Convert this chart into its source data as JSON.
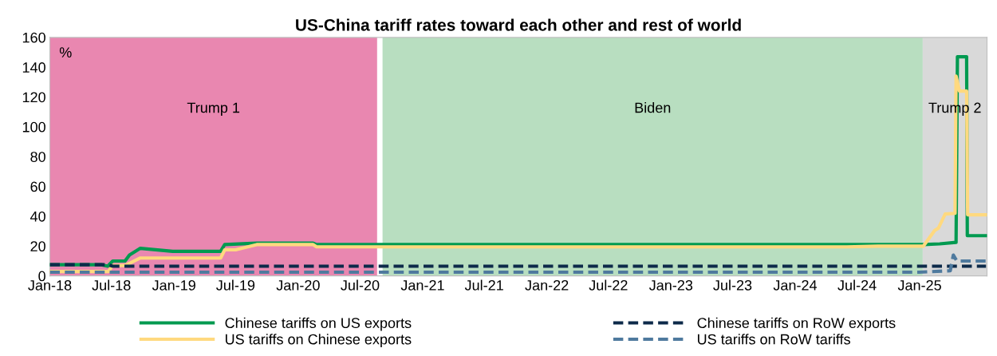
{
  "chart_data": {
    "type": "line",
    "title": "US-China tariff rates toward each other and rest of world",
    "annotations": [
      "%"
    ],
    "xlim": [
      "2018-01-01",
      "2025-07-18"
    ],
    "xticks": [
      {
        "value": "2018-01-01",
        "label": "Jan-18"
      },
      {
        "value": "2018-07-01",
        "label": "Jul-18"
      },
      {
        "value": "2019-01-01",
        "label": "Jan-19"
      },
      {
        "value": "2019-07-01",
        "label": "Jul-19"
      },
      {
        "value": "2020-01-01",
        "label": "Jan-20"
      },
      {
        "value": "2020-07-01",
        "label": "Jul-20"
      },
      {
        "value": "2021-01-01",
        "label": "Jan-21"
      },
      {
        "value": "2021-07-01",
        "label": "Jul-21"
      },
      {
        "value": "2022-01-01",
        "label": "Jan-22"
      },
      {
        "value": "2022-07-01",
        "label": "Jul-22"
      },
      {
        "value": "2023-01-01",
        "label": "Jan-23"
      },
      {
        "value": "2023-07-01",
        "label": "Jul-23"
      },
      {
        "value": "2024-01-01",
        "label": "Jan-24"
      },
      {
        "value": "2024-07-01",
        "label": "Jul-24"
      },
      {
        "value": "2025-01-01",
        "label": "Jan-25"
      }
    ],
    "ylim": [
      0,
      160
    ],
    "yticks": [
      0,
      20,
      40,
      60,
      80,
      100,
      120,
      140,
      160
    ],
    "grid": false,
    "legend": "bottom",
    "bands": [
      {
        "axis": "x",
        "from": "2018-01-01",
        "to": "2020-08-20",
        "label": "Trump 1",
        "color": "#e987b0"
      },
      {
        "axis": "x",
        "from": "2020-09-05",
        "to": "2025-01-10",
        "label": "Biden",
        "color": "#b8dec0"
      },
      {
        "axis": "x",
        "from": "2025-01-10",
        "to": "2025-07-18",
        "label": "Trump 2",
        "color": "#d9d9d9"
      }
    ],
    "series": [
      {
        "name": "Chinese tariffs on US exports",
        "color": "#009a50",
        "line_style": "solid",
        "x": [
          "2018-01-01",
          "2018-06-01",
          "2018-06-20",
          "2018-07-05",
          "2018-08-10",
          "2018-08-23",
          "2018-09-24",
          "2018-12-28",
          "2019-05-18",
          "2019-05-30",
          "2019-09-01",
          "2020-02-14",
          "2020-02-24",
          "2025-01-12",
          "2025-03-01",
          "2025-04-18",
          "2025-04-22",
          "2025-05-19",
          "2025-05-21",
          "2025-07-15"
        ],
        "values": [
          7.5,
          7.5,
          6.5,
          10,
          10,
          14,
          18.5,
          16.5,
          16.5,
          21,
          22,
          22,
          21,
          21,
          21.5,
          22.5,
          147,
          147,
          27,
          27
        ]
      },
      {
        "name": "US tariffs on Chinese exports",
        "color": "#ffd97f",
        "line_style": "solid",
        "x": [
          "2018-01-01",
          "2018-06-22",
          "2018-07-05",
          "2018-08-10",
          "2018-09-24",
          "2019-05-18",
          "2019-05-30",
          "2019-07-01",
          "2019-09-01",
          "2020-02-14",
          "2020-02-24",
          "2024-06-01",
          "2024-09-01",
          "2025-01-12",
          "2025-02-14",
          "2025-02-25",
          "2025-03-17",
          "2025-04-15",
          "2025-04-18",
          "2025-04-28",
          "2025-05-19",
          "2025-05-22",
          "2025-07-15"
        ],
        "values": [
          3,
          3,
          7,
          7,
          12,
          12,
          17.5,
          17.5,
          21,
          21,
          19.5,
          19.5,
          20,
          20,
          30.5,
          32,
          41.5,
          42,
          134,
          124,
          124,
          41,
          41
        ]
      },
      {
        "name": "Chinese tariffs on RoW exports",
        "color": "#0d2a4a",
        "line_style": "dashed",
        "x": [
          "2018-01-01",
          "2018-06-20",
          "2018-07-05",
          "2025-07-15"
        ],
        "values": [
          7.5,
          7.5,
          6.5,
          6.5
        ]
      },
      {
        "name": "US tariffs on RoW tariffs",
        "color": "#4f7a9e",
        "line_style": "dashed",
        "x": [
          "2018-01-01",
          "2024-12-31",
          "2025-04-01",
          "2025-04-10",
          "2025-04-20",
          "2025-07-15"
        ],
        "values": [
          2.5,
          2.5,
          3.5,
          14,
          10,
          10
        ]
      }
    ]
  }
}
